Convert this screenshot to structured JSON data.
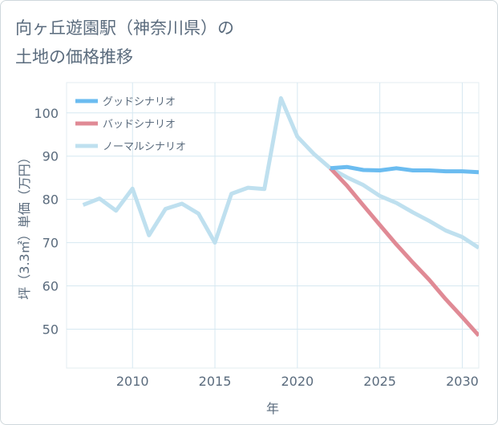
{
  "title_lines": [
    "向ヶ丘遊園駅（神奈川県）の",
    "土地の価格推移"
  ],
  "chart_data": {
    "type": "line",
    "xlabel": "年",
    "ylabel": "坪（3.3㎡）単価（万円）",
    "xlim": [
      2006,
      2031
    ],
    "ylim": [
      41,
      107
    ],
    "xticks": [
      2010,
      2015,
      2020,
      2025,
      2030
    ],
    "yticks": [
      50,
      60,
      70,
      80,
      90,
      100
    ],
    "grid": true,
    "legend_position": "top-left",
    "series": [
      {
        "name": "グッドシナリオ",
        "color": "#6bbcf0",
        "x": [
          2022,
          2023,
          2024,
          2025,
          2026,
          2027,
          2028,
          2029,
          2030,
          2031
        ],
        "y": [
          87.2,
          87.5,
          86.8,
          86.7,
          87.2,
          86.7,
          86.7,
          86.5,
          86.5,
          86.3
        ]
      },
      {
        "name": "バッドシナリオ",
        "color": "#e08a95",
        "x": [
          2022,
          2023,
          2024,
          2025,
          2026,
          2027,
          2028,
          2029,
          2030,
          2031
        ],
        "y": [
          87.2,
          83.2,
          78.6,
          74.1,
          69.6,
          65.4,
          61.4,
          56.9,
          52.8,
          48.5
        ]
      },
      {
        "name": "ノーマルシナリオ",
        "color": "#bfe0ef",
        "x": [
          2007,
          2008,
          2009,
          2010,
          2011,
          2012,
          2013,
          2014,
          2015,
          2016,
          2017,
          2018,
          2019,
          2020,
          2021,
          2022,
          2023,
          2024,
          2025,
          2026,
          2027,
          2028,
          2029,
          2030,
          2031
        ],
        "y": [
          78.7,
          80.2,
          77.4,
          82.5,
          71.7,
          77.8,
          79.0,
          76.7,
          70.0,
          81.3,
          82.7,
          82.4,
          103.4,
          94.5,
          90.5,
          87.2,
          85.1,
          83.3,
          80.8,
          79.2,
          77.0,
          75.0,
          72.8,
          71.3,
          68.8
        ]
      }
    ]
  }
}
